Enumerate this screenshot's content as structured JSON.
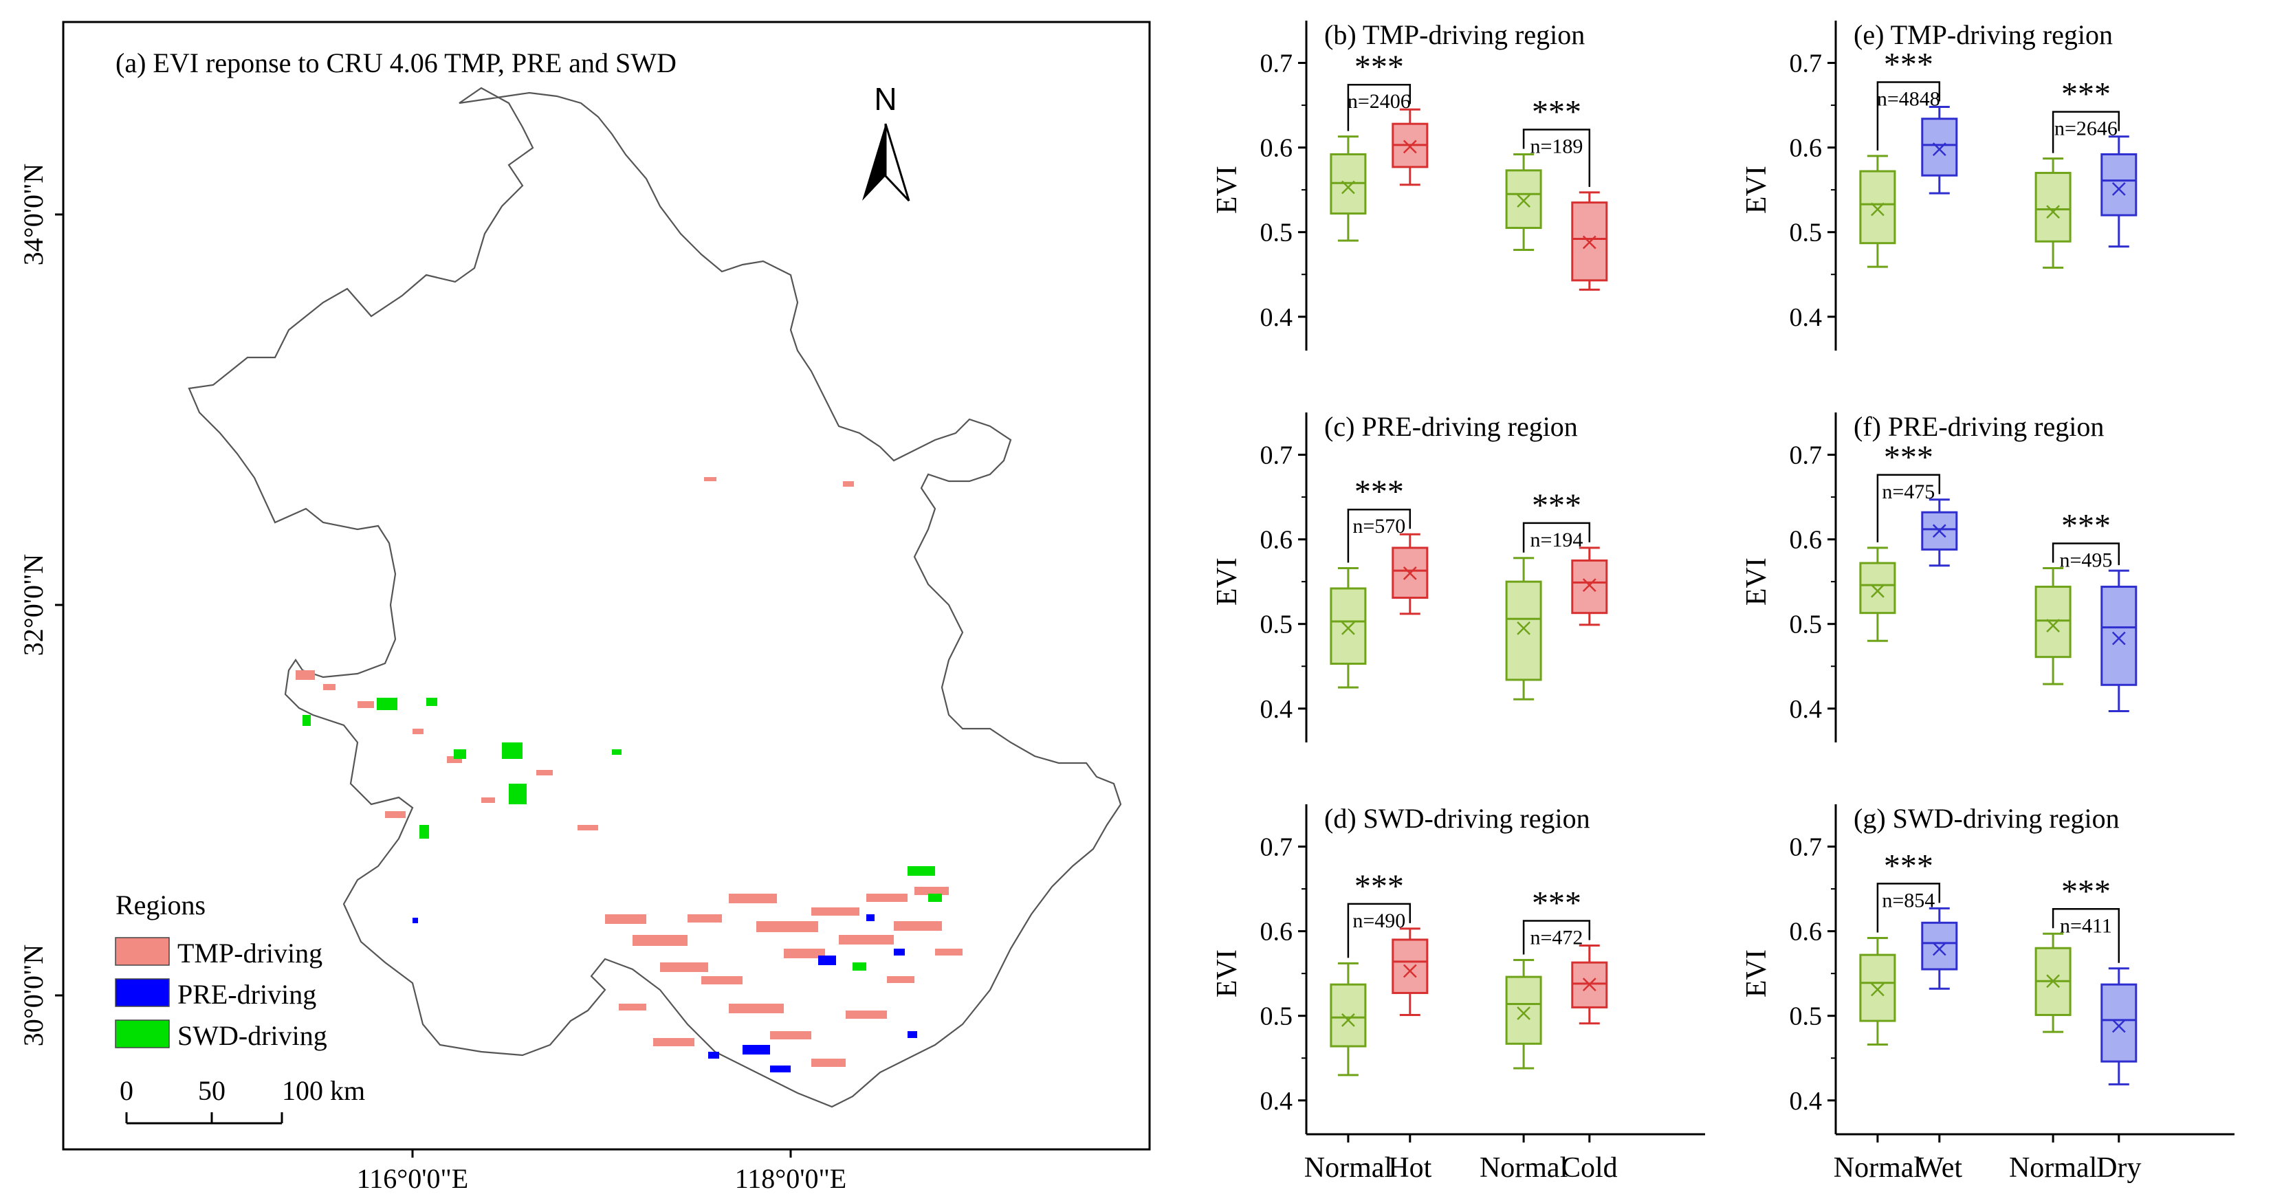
{
  "map": {
    "title": "(a) EVI reponse to CRU 4.06 TMP, PRE and SWD",
    "north_label": "N",
    "lat_labels": [
      "34°0'0\"N",
      "32°0'0\"N",
      "30°0'0\"N"
    ],
    "lon_labels": [
      "116°0'0\"E",
      "118°0'0\"E"
    ],
    "legend_title": "Regions",
    "legend": [
      {
        "label": "TMP-driving",
        "color": "#F28B82"
      },
      {
        "label": "PRE-driving",
        "color": "#0000FF"
      },
      {
        "label": "SWD-driving",
        "color": "#00E000"
      }
    ],
    "scalebar": {
      "ticks": [
        "0",
        "50",
        "100 km"
      ]
    }
  },
  "chart_data": [
    {
      "type": "box",
      "title": "(b) TMP-driving region",
      "ylabel": "EVI",
      "ylim": [
        0.36,
        0.75
      ],
      "yticks": [
        0.4,
        0.5,
        0.6,
        0.7
      ],
      "categories": [
        "Normal",
        "Hot",
        "Normal",
        "Cold"
      ],
      "boxes": [
        {
          "min": 0.49,
          "q1": 0.522,
          "median": 0.558,
          "q3": 0.592,
          "max": 0.613,
          "mean": 0.553,
          "color": "green"
        },
        {
          "min": 0.556,
          "q1": 0.577,
          "median": 0.603,
          "q3": 0.628,
          "max": 0.645,
          "mean": 0.601,
          "color": "red"
        },
        {
          "min": 0.479,
          "q1": 0.505,
          "median": 0.545,
          "q3": 0.573,
          "max": 0.592,
          "mean": 0.537,
          "color": "green"
        },
        {
          "min": 0.432,
          "q1": 0.443,
          "median": 0.492,
          "q3": 0.535,
          "max": 0.547,
          "mean": 0.488,
          "color": "red"
        }
      ],
      "annotations": [
        {
          "stars": "***",
          "n": "n=2406"
        },
        {
          "stars": "***",
          "n": "n=189"
        }
      ]
    },
    {
      "type": "box",
      "title": "(c) PRE-driving region",
      "ylabel": "EVI",
      "ylim": [
        0.36,
        0.75
      ],
      "yticks": [
        0.4,
        0.5,
        0.6,
        0.7
      ],
      "categories": [
        "Normal",
        "Hot",
        "Normal",
        "Cold"
      ],
      "boxes": [
        {
          "min": 0.425,
          "q1": 0.453,
          "median": 0.503,
          "q3": 0.542,
          "max": 0.566,
          "mean": 0.495,
          "color": "green"
        },
        {
          "min": 0.512,
          "q1": 0.531,
          "median": 0.563,
          "q3": 0.59,
          "max": 0.606,
          "mean": 0.56,
          "color": "red"
        },
        {
          "min": 0.411,
          "q1": 0.434,
          "median": 0.506,
          "q3": 0.55,
          "max": 0.578,
          "mean": 0.495,
          "color": "green"
        },
        {
          "min": 0.499,
          "q1": 0.513,
          "median": 0.549,
          "q3": 0.575,
          "max": 0.59,
          "mean": 0.546,
          "color": "red"
        }
      ],
      "annotations": [
        {
          "stars": "***",
          "n": "n=570"
        },
        {
          "stars": "***",
          "n": "n=194"
        }
      ]
    },
    {
      "type": "box",
      "title": "(d) SWD-driving region",
      "ylabel": "EVI",
      "ylim": [
        0.36,
        0.75
      ],
      "yticks": [
        0.4,
        0.5,
        0.6,
        0.7
      ],
      "categories": [
        "Normal",
        "Hot",
        "Normal",
        "Cold"
      ],
      "boxes": [
        {
          "min": 0.43,
          "q1": 0.464,
          "median": 0.498,
          "q3": 0.537,
          "max": 0.562,
          "mean": 0.495,
          "color": "green"
        },
        {
          "min": 0.501,
          "q1": 0.527,
          "median": 0.564,
          "q3": 0.59,
          "max": 0.603,
          "mean": 0.553,
          "color": "red"
        },
        {
          "min": 0.438,
          "q1": 0.467,
          "median": 0.514,
          "q3": 0.546,
          "max": 0.566,
          "mean": 0.503,
          "color": "green"
        },
        {
          "min": 0.491,
          "q1": 0.51,
          "median": 0.538,
          "q3": 0.563,
          "max": 0.583,
          "mean": 0.537,
          "color": "red"
        }
      ],
      "annotations": [
        {
          "stars": "***",
          "n": "n=490"
        },
        {
          "stars": "***",
          "n": "n=472"
        }
      ]
    },
    {
      "type": "box",
      "title": "(e) TMP-driving region",
      "ylabel": "EVI",
      "ylim": [
        0.36,
        0.75
      ],
      "yticks": [
        0.4,
        0.5,
        0.6,
        0.7
      ],
      "categories": [
        "Normal",
        "Wet",
        "Normal",
        "Dry"
      ],
      "boxes": [
        {
          "min": 0.459,
          "q1": 0.487,
          "median": 0.533,
          "q3": 0.572,
          "max": 0.59,
          "mean": 0.527,
          "color": "green"
        },
        {
          "min": 0.546,
          "q1": 0.567,
          "median": 0.603,
          "q3": 0.634,
          "max": 0.648,
          "mean": 0.598,
          "color": "blue"
        },
        {
          "min": 0.458,
          "q1": 0.489,
          "median": 0.527,
          "q3": 0.57,
          "max": 0.587,
          "mean": 0.524,
          "color": "green"
        },
        {
          "min": 0.483,
          "q1": 0.52,
          "median": 0.561,
          "q3": 0.592,
          "max": 0.613,
          "mean": 0.551,
          "color": "blue"
        }
      ],
      "annotations": [
        {
          "stars": "***",
          "n": "n=4848"
        },
        {
          "stars": "***",
          "n": "n=2646"
        }
      ]
    },
    {
      "type": "box",
      "title": "(f) PRE-driving region",
      "ylabel": "EVI",
      "ylim": [
        0.36,
        0.75
      ],
      "yticks": [
        0.4,
        0.5,
        0.6,
        0.7
      ],
      "categories": [
        "Normal",
        "Wet",
        "Normal",
        "Dry"
      ],
      "boxes": [
        {
          "min": 0.48,
          "q1": 0.513,
          "median": 0.546,
          "q3": 0.572,
          "max": 0.59,
          "mean": 0.539,
          "color": "green"
        },
        {
          "min": 0.569,
          "q1": 0.588,
          "median": 0.612,
          "q3": 0.632,
          "max": 0.647,
          "mean": 0.61,
          "color": "blue"
        },
        {
          "min": 0.429,
          "q1": 0.461,
          "median": 0.504,
          "q3": 0.544,
          "max": 0.566,
          "mean": 0.498,
          "color": "green"
        },
        {
          "min": 0.397,
          "q1": 0.428,
          "median": 0.496,
          "q3": 0.544,
          "max": 0.563,
          "mean": 0.483,
          "color": "blue"
        }
      ],
      "annotations": [
        {
          "stars": "***",
          "n": "n=475"
        },
        {
          "stars": "***",
          "n": "n=495"
        }
      ]
    },
    {
      "type": "box",
      "title": "(g) SWD-driving region",
      "ylabel": "EVI",
      "ylim": [
        0.36,
        0.75
      ],
      "yticks": [
        0.4,
        0.5,
        0.6,
        0.7
      ],
      "categories": [
        "Normal",
        "Wet",
        "Normal",
        "Dry"
      ],
      "boxes": [
        {
          "min": 0.466,
          "q1": 0.494,
          "median": 0.539,
          "q3": 0.572,
          "max": 0.592,
          "mean": 0.531,
          "color": "green"
        },
        {
          "min": 0.532,
          "q1": 0.555,
          "median": 0.586,
          "q3": 0.61,
          "max": 0.627,
          "mean": 0.579,
          "color": "blue"
        },
        {
          "min": 0.481,
          "q1": 0.501,
          "median": 0.541,
          "q3": 0.58,
          "max": 0.597,
          "mean": 0.541,
          "color": "green"
        },
        {
          "min": 0.419,
          "q1": 0.446,
          "median": 0.495,
          "q3": 0.537,
          "max": 0.556,
          "mean": 0.488,
          "color": "blue"
        }
      ],
      "annotations": [
        {
          "stars": "***",
          "n": "n=854"
        },
        {
          "stars": "***",
          "n": "n=411"
        }
      ]
    }
  ],
  "colors": {
    "green_stroke": "#6FA319",
    "green_fill": "#D3E8A8",
    "red_stroke": "#D83030",
    "red_fill": "#F2A3A3",
    "blue_stroke": "#2F2FCF",
    "blue_fill": "#A8AEF2"
  }
}
